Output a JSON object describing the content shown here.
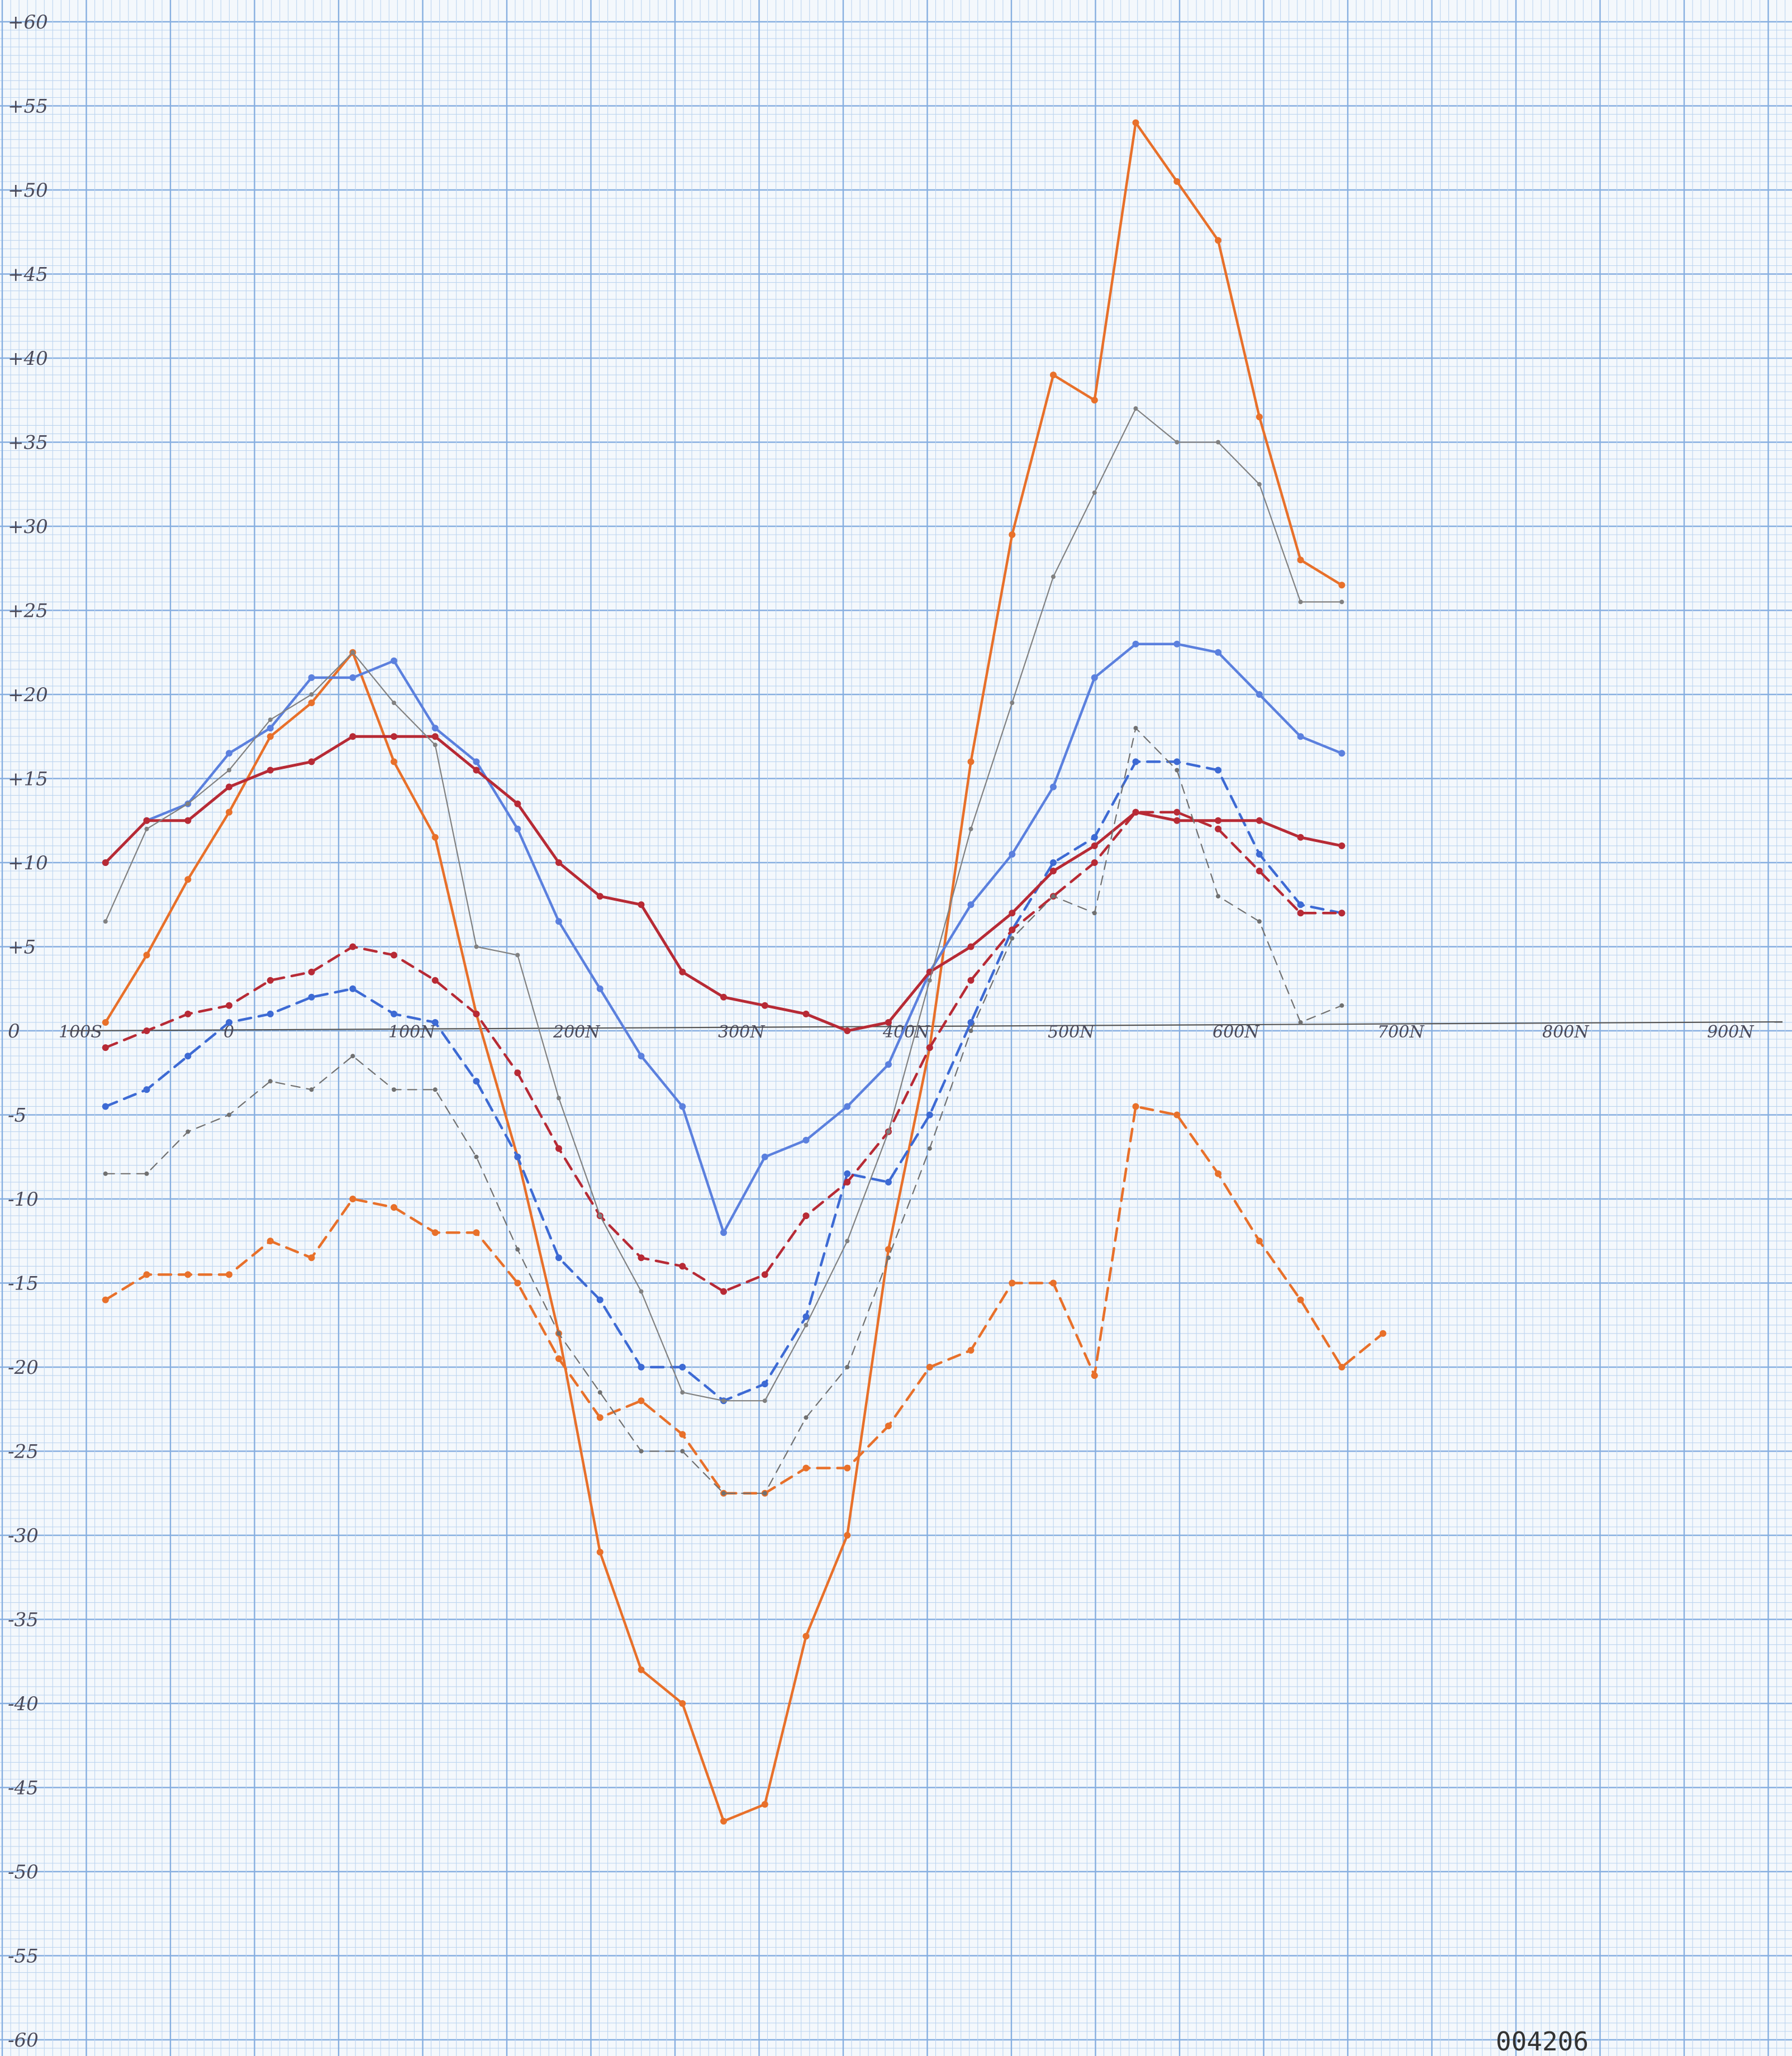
{
  "chart_data": {
    "type": "line",
    "title": "",
    "xlabel": "",
    "ylabel": "",
    "xlim": [
      -100,
      900
    ],
    "ylim": [
      -60,
      60
    ],
    "grid": true,
    "y_ticks": [
      "+60",
      "+55",
      "+50",
      "+45",
      "+40",
      "+35",
      "+30",
      "+25",
      "+20",
      "+15",
      "+10",
      "+5",
      "0",
      "-5",
      "-10",
      "-15",
      "-20",
      "-25",
      "-30",
      "-35",
      "-40",
      "-45",
      "-50",
      "-55",
      "-60"
    ],
    "x_ticks": [
      {
        "value": -100,
        "label": "100S"
      },
      {
        "value": 0,
        "label": "0"
      },
      {
        "value": 100,
        "label": "100N"
      },
      {
        "value": 200,
        "label": "200N"
      },
      {
        "value": 300,
        "label": "300N"
      },
      {
        "value": 400,
        "label": "400N"
      },
      {
        "value": 500,
        "label": "500N"
      },
      {
        "value": 600,
        "label": "600N"
      },
      {
        "value": 700,
        "label": "700N"
      },
      {
        "value": 800,
        "label": "800N"
      },
      {
        "value": 900,
        "label": "900N"
      }
    ],
    "series": [
      {
        "color": "#e8702a",
        "style": "solid",
        "width": 4.5,
        "points": [
          [
            -75,
            0.5
          ],
          [
            -50,
            4.5
          ],
          [
            -25,
            9
          ],
          [
            0,
            13
          ],
          [
            25,
            17.5
          ],
          [
            50,
            19.5
          ],
          [
            75,
            22.5
          ],
          [
            100,
            16
          ],
          [
            125,
            11.5
          ],
          [
            150,
            1
          ],
          [
            175,
            -7.5
          ],
          [
            200,
            -18
          ],
          [
            225,
            -31
          ],
          [
            250,
            -38
          ],
          [
            275,
            -40
          ],
          [
            300,
            -47
          ],
          [
            325,
            -46
          ],
          [
            350,
            -36
          ],
          [
            375,
            -30
          ],
          [
            400,
            -13
          ],
          [
            425,
            -1
          ],
          [
            450,
            16
          ],
          [
            475,
            29.5
          ],
          [
            500,
            39
          ],
          [
            525,
            37.5
          ],
          [
            550,
            54
          ],
          [
            575,
            50.5
          ],
          [
            600,
            47
          ],
          [
            625,
            36.5
          ],
          [
            650,
            28
          ],
          [
            675,
            26.5
          ]
        ]
      },
      {
        "color": "#e8702a",
        "style": "dashed",
        "width": 4.5,
        "points": [
          [
            -75,
            -16
          ],
          [
            -50,
            -14.5
          ],
          [
            -25,
            -14.5
          ],
          [
            0,
            -14.5
          ],
          [
            25,
            -12.5
          ],
          [
            50,
            -13.5
          ],
          [
            75,
            -10
          ],
          [
            100,
            -10.5
          ],
          [
            125,
            -12
          ],
          [
            150,
            -12
          ],
          [
            175,
            -15
          ],
          [
            200,
            -19.5
          ],
          [
            225,
            -23
          ],
          [
            250,
            -22
          ],
          [
            275,
            -24
          ],
          [
            300,
            -27.5
          ],
          [
            325,
            -27.5
          ],
          [
            350,
            -26
          ],
          [
            375,
            -26
          ],
          [
            400,
            -23.5
          ],
          [
            425,
            -20
          ],
          [
            450,
            -19
          ],
          [
            475,
            -15
          ],
          [
            500,
            -15
          ],
          [
            525,
            -20.5
          ],
          [
            550,
            -4.5
          ],
          [
            575,
            -5
          ],
          [
            600,
            -8.5
          ],
          [
            625,
            -12.5
          ],
          [
            650,
            -16
          ],
          [
            675,
            -20
          ],
          [
            700,
            -18
          ]
        ]
      },
      {
        "color": "#5b80de",
        "style": "solid",
        "width": 4.5,
        "points": [
          [
            -75,
            10
          ],
          [
            -50,
            12.5
          ],
          [
            -25,
            13.5
          ],
          [
            0,
            16.5
          ],
          [
            25,
            18
          ],
          [
            50,
            21
          ],
          [
            75,
            21
          ],
          [
            100,
            22
          ],
          [
            125,
            18
          ],
          [
            150,
            16
          ],
          [
            175,
            12
          ],
          [
            200,
            6.5
          ],
          [
            225,
            2.5
          ],
          [
            250,
            -1.5
          ],
          [
            275,
            -4.5
          ],
          [
            300,
            -12
          ],
          [
            325,
            -7.5
          ],
          [
            350,
            -6.5
          ],
          [
            375,
            -4.5
          ],
          [
            400,
            -2
          ],
          [
            425,
            3.5
          ],
          [
            450,
            7.5
          ],
          [
            475,
            10.5
          ],
          [
            500,
            14.5
          ],
          [
            525,
            21
          ],
          [
            550,
            23
          ],
          [
            575,
            23
          ],
          [
            600,
            22.5
          ],
          [
            625,
            20
          ],
          [
            650,
            17.5
          ],
          [
            675,
            16.5
          ]
        ]
      },
      {
        "color": "#3d6ad4",
        "style": "dashed",
        "width": 4.5,
        "points": [
          [
            -75,
            -4.5
          ],
          [
            -50,
            -3.5
          ],
          [
            -25,
            -1.5
          ],
          [
            0,
            0.5
          ],
          [
            25,
            1
          ],
          [
            50,
            2
          ],
          [
            75,
            2.5
          ],
          [
            100,
            1
          ],
          [
            125,
            0.5
          ],
          [
            150,
            -3
          ],
          [
            175,
            -7.5
          ],
          [
            200,
            -13.5
          ],
          [
            225,
            -16
          ],
          [
            250,
            -20
          ],
          [
            275,
            -20
          ],
          [
            300,
            -22
          ],
          [
            325,
            -21
          ],
          [
            350,
            -17
          ],
          [
            375,
            -8.5
          ],
          [
            400,
            -9
          ],
          [
            425,
            -5
          ],
          [
            450,
            0.5
          ],
          [
            475,
            6
          ],
          [
            500,
            10
          ],
          [
            525,
            11.5
          ],
          [
            550,
            16
          ],
          [
            575,
            16
          ],
          [
            600,
            15.5
          ],
          [
            625,
            10.5
          ],
          [
            650,
            7.5
          ],
          [
            675,
            7
          ]
        ]
      },
      {
        "color": "#b72a35",
        "style": "solid",
        "width": 5,
        "points": [
          [
            -75,
            10
          ],
          [
            -50,
            12.5
          ],
          [
            -25,
            12.5
          ],
          [
            0,
            14.5
          ],
          [
            25,
            15.5
          ],
          [
            50,
            16
          ],
          [
            75,
            17.5
          ],
          [
            100,
            17.5
          ],
          [
            125,
            17.5
          ],
          [
            150,
            15.5
          ],
          [
            175,
            13.5
          ],
          [
            200,
            10
          ],
          [
            225,
            8
          ],
          [
            250,
            7.5
          ],
          [
            275,
            3.5
          ],
          [
            300,
            2
          ],
          [
            325,
            1.5
          ],
          [
            350,
            1
          ],
          [
            375,
            0
          ],
          [
            400,
            0.5
          ],
          [
            425,
            3.5
          ],
          [
            450,
            5
          ],
          [
            475,
            7
          ],
          [
            500,
            9.5
          ],
          [
            525,
            11
          ],
          [
            550,
            13
          ],
          [
            575,
            12.5
          ],
          [
            600,
            12.5
          ],
          [
            625,
            12.5
          ],
          [
            650,
            11.5
          ],
          [
            675,
            11
          ]
        ]
      },
      {
        "color": "#b72a35",
        "style": "dashed",
        "width": 4.5,
        "points": [
          [
            -75,
            -1
          ],
          [
            -50,
            0
          ],
          [
            -25,
            1
          ],
          [
            0,
            1.5
          ],
          [
            25,
            3
          ],
          [
            50,
            3.5
          ],
          [
            75,
            5
          ],
          [
            100,
            4.5
          ],
          [
            125,
            3
          ],
          [
            150,
            1
          ],
          [
            175,
            -2.5
          ],
          [
            200,
            -7
          ],
          [
            225,
            -11
          ],
          [
            250,
            -13.5
          ],
          [
            275,
            -14
          ],
          [
            300,
            -15.5
          ],
          [
            325,
            -14.5
          ],
          [
            350,
            -11
          ],
          [
            375,
            -9
          ],
          [
            400,
            -6
          ],
          [
            425,
            -1
          ],
          [
            450,
            3
          ],
          [
            475,
            6
          ],
          [
            500,
            8
          ],
          [
            525,
            10
          ],
          [
            550,
            13
          ],
          [
            575,
            13
          ],
          [
            600,
            12
          ],
          [
            625,
            9.5
          ],
          [
            650,
            7
          ],
          [
            675,
            7
          ]
        ]
      },
      {
        "color": "#808080",
        "style": "solid",
        "width": 2.2,
        "points": [
          [
            -75,
            6.5
          ],
          [
            -50,
            12
          ],
          [
            -25,
            13.5
          ],
          [
            0,
            15.5
          ],
          [
            25,
            18.5
          ],
          [
            50,
            20
          ],
          [
            75,
            22.5
          ],
          [
            100,
            19.5
          ],
          [
            125,
            17
          ],
          [
            150,
            5
          ],
          [
            175,
            4.5
          ],
          [
            200,
            -4
          ],
          [
            225,
            -11
          ],
          [
            250,
            -15.5
          ],
          [
            275,
            -21.5
          ],
          [
            300,
            -22
          ],
          [
            325,
            -22
          ],
          [
            350,
            -17.5
          ],
          [
            375,
            -12.5
          ],
          [
            400,
            -6
          ],
          [
            425,
            3
          ],
          [
            450,
            12
          ],
          [
            475,
            19.5
          ],
          [
            500,
            27
          ],
          [
            525,
            32
          ],
          [
            550,
            37
          ],
          [
            575,
            35
          ],
          [
            600,
            35
          ],
          [
            625,
            32.5
          ],
          [
            650,
            25.5
          ],
          [
            675,
            25.5
          ]
        ]
      },
      {
        "color": "#707070",
        "style": "dashed",
        "width": 2.2,
        "points": [
          [
            -75,
            -8.5
          ],
          [
            -50,
            -8.5
          ],
          [
            -25,
            -6
          ],
          [
            0,
            -5
          ],
          [
            25,
            -3
          ],
          [
            50,
            -3.5
          ],
          [
            75,
            -1.5
          ],
          [
            100,
            -3.5
          ],
          [
            125,
            -3.5
          ],
          [
            150,
            -7.5
          ],
          [
            175,
            -13
          ],
          [
            200,
            -18
          ],
          [
            225,
            -21.5
          ],
          [
            250,
            -25
          ],
          [
            275,
            -25
          ],
          [
            300,
            -27.5
          ],
          [
            325,
            -27.5
          ],
          [
            350,
            -23
          ],
          [
            375,
            -20
          ],
          [
            400,
            -13.5
          ],
          [
            425,
            -7
          ],
          [
            450,
            0
          ],
          [
            475,
            5.5
          ],
          [
            500,
            8
          ],
          [
            525,
            7
          ],
          [
            550,
            18
          ],
          [
            575,
            15.5
          ],
          [
            600,
            8
          ],
          [
            625,
            6.5
          ],
          [
            650,
            0.5
          ],
          [
            675,
            1.5
          ]
        ]
      }
    ]
  },
  "serial": "004206"
}
